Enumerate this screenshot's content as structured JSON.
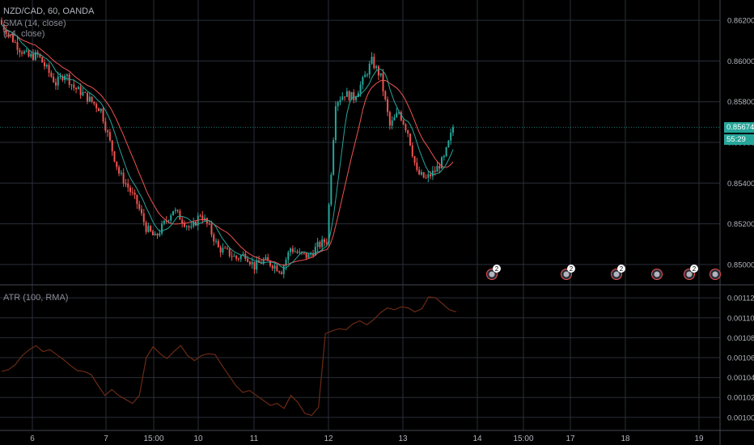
{
  "header": {
    "symbol_line": "NZD/CAD, 60, OANDA",
    "ma1_label": "SMA (14, close)",
    "ma2_label": "(14, close)",
    "atr_label": "ATR (100, RMA)"
  },
  "price_tags": {
    "last_price": "0.85674",
    "countdown": "55:29"
  },
  "colors": {
    "up": "#26a69a",
    "down": "#ef5350",
    "fast_ma": "#26a69a",
    "slow_ma": "#ef5350",
    "atr_line": "#6b2a14",
    "grid": "#2a2e39"
  },
  "event_markers": [
    {
      "count": "2"
    },
    {
      "count": "2"
    },
    {
      "count": "2"
    },
    {
      "count": ""
    },
    {
      "count": "2"
    },
    {
      "count": ""
    }
  ],
  "chart_data": [
    {
      "type": "candlestick",
      "name": "price",
      "y_ticks": [
        "0.85000",
        "0.85200",
        "0.85400",
        "0.85600",
        "0.85800",
        "0.86000",
        "0.86200"
      ],
      "ylim": [
        0.849,
        0.863
      ],
      "x_ticks": [
        "6",
        "7",
        "15:00",
        "10",
        "11",
        "12",
        "13",
        "14",
        "15:00",
        "17",
        "18",
        "19"
      ],
      "ohlc_close_path": [
        [
          0,
          0.8618
        ],
        [
          4,
          0.8612
        ],
        [
          8,
          0.8606
        ],
        [
          12,
          0.8602
        ],
        [
          16,
          0.8603
        ],
        [
          20,
          0.8596
        ],
        [
          24,
          0.8589
        ],
        [
          28,
          0.8594
        ],
        [
          32,
          0.8587
        ],
        [
          36,
          0.8584
        ],
        [
          40,
          0.858
        ],
        [
          44,
          0.8576
        ],
        [
          48,
          0.856
        ],
        [
          52,
          0.8545
        ],
        [
          56,
          0.8538
        ],
        [
          60,
          0.853
        ],
        [
          64,
          0.8518
        ],
        [
          68,
          0.8513
        ],
        [
          72,
          0.852
        ],
        [
          76,
          0.8527
        ],
        [
          80,
          0.8522
        ],
        [
          84,
          0.8517
        ],
        [
          88,
          0.8525
        ],
        [
          92,
          0.8518
        ],
        [
          96,
          0.8508
        ],
        [
          100,
          0.8506
        ],
        [
          104,
          0.8503
        ],
        [
          108,
          0.8505
        ],
        [
          112,
          0.8499
        ],
        [
          116,
          0.8502
        ],
        [
          120,
          0.85
        ],
        [
          124,
          0.8497
        ],
        [
          128,
          0.8508
        ],
        [
          132,
          0.8505
        ],
        [
          136,
          0.8504
        ],
        [
          140,
          0.8509
        ],
        [
          144,
          0.8512
        ],
        [
          148,
          0.858
        ],
        [
          152,
          0.8584
        ],
        [
          156,
          0.8582
        ],
        [
          160,
          0.859
        ],
        [
          164,
          0.86
        ],
        [
          168,
          0.8592
        ],
        [
          172,
          0.8568
        ],
        [
          176,
          0.8575
        ],
        [
          180,
          0.8565
        ],
        [
          184,
          0.8545
        ],
        [
          188,
          0.8542
        ],
        [
          192,
          0.8546
        ],
        [
          196,
          0.8552
        ],
        [
          200,
          0.8567
        ]
      ],
      "last_price": 0.85674
    },
    {
      "type": "line",
      "name": "ATR (100, RMA)",
      "y_ticks": [
        "0.00100",
        "0.00102",
        "0.00104",
        "0.00106",
        "0.00108",
        "0.00110",
        "0.00112"
      ],
      "ylim": [
        0.000995,
        0.001125
      ],
      "values": [
        0.001046,
        0.001048,
        0.001053,
        0.001062,
        0.001068,
        0.001072,
        0.001066,
        0.001068,
        0.001063,
        0.001058,
        0.001052,
        0.001047,
        0.001046,
        0.001043,
        0.001032,
        0.001022,
        0.001028,
        0.001022,
        0.001018,
        0.001014,
        0.001022,
        0.00106,
        0.001071,
        0.001064,
        0.001059,
        0.001066,
        0.001072,
        0.001062,
        0.001057,
        0.001062,
        0.001064,
        0.001063,
        0.001052,
        0.001042,
        0.001032,
        0.001025,
        0.001027,
        0.001022,
        0.001017,
        0.001012,
        0.001014,
        0.001009,
        0.001022,
        0.001015,
        0.001004,
        0.001002,
        0.00101,
        0.001084,
        0.001087,
        0.001089,
        0.001088,
        0.001094,
        0.001097,
        0.001093,
        0.001098,
        0.001105,
        0.00111,
        0.001108,
        0.001111,
        0.00111,
        0.001106,
        0.001109,
        0.001121,
        0.00112,
        0.001114,
        0.001108,
        0.001106
      ]
    }
  ]
}
